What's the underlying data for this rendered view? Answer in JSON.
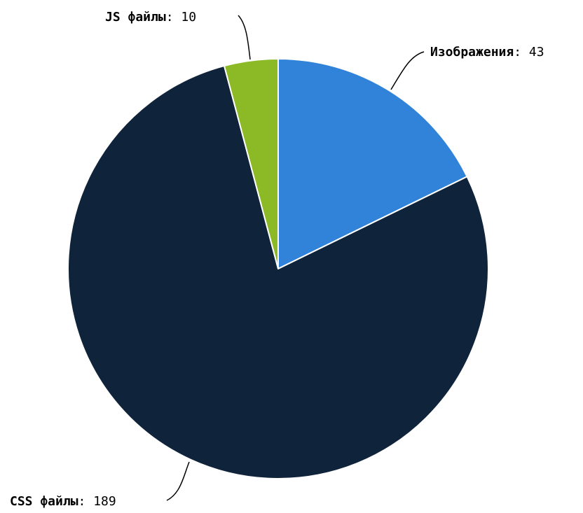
{
  "chart_data": {
    "type": "pie",
    "start_angle_deg": 0,
    "direction": "clockwise",
    "slices": [
      {
        "label": "Изображения",
        "value": 43,
        "color": "#3182d9"
      },
      {
        "label": "CSS файлы",
        "value": 189,
        "color": "#0f233a"
      },
      {
        "label": "JS файлы",
        "value": 10,
        "color": "#8cb926"
      }
    ],
    "data_labels": {
      "format": "name: value",
      "separator": ": "
    },
    "legend": "none"
  }
}
